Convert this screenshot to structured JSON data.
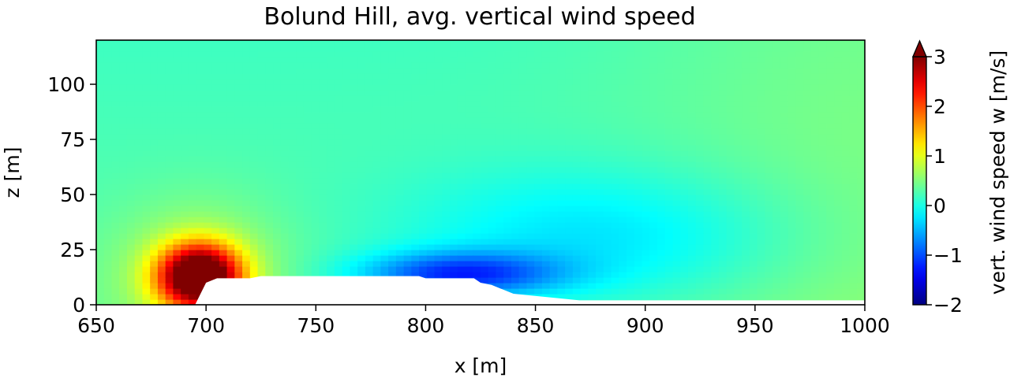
{
  "chart_data": {
    "type": "heatmap",
    "title": "Bolund Hill, avg. vertical wind speed",
    "xlabel": "x [m]",
    "ylabel": "z [m]",
    "xlim": [
      650,
      1000
    ],
    "ylim": [
      0,
      120
    ],
    "xticks": [
      650,
      700,
      750,
      800,
      850,
      900,
      950,
      1000
    ],
    "yticks": [
      0,
      25,
      50,
      75,
      100
    ],
    "grid": false,
    "colorbar": {
      "label": "vert. wind speed w [m/s]",
      "colormap": "jet",
      "range": [
        -2,
        3
      ],
      "ticks": [
        -2,
        -1,
        0,
        1,
        2,
        3
      ],
      "extend": "max"
    },
    "terrain": {
      "x": [
        650,
        695,
        700,
        705,
        720,
        725,
        797,
        800,
        822,
        825,
        830,
        835,
        840,
        870,
        1000
      ],
      "z": [
        0,
        0,
        10,
        12,
        12,
        13,
        13,
        12,
        12,
        10,
        9,
        7,
        5,
        2,
        2
      ]
    },
    "features": [
      {
        "kind": "updraft",
        "x": 697,
        "z": 13,
        "w": 3.0
      },
      {
        "kind": "downdraft",
        "x": 800,
        "z": 14,
        "w": -1.3
      },
      {
        "kind": "wake",
        "x": 880,
        "z": 30,
        "w": -0.6
      }
    ],
    "background_w": 0.25
  }
}
